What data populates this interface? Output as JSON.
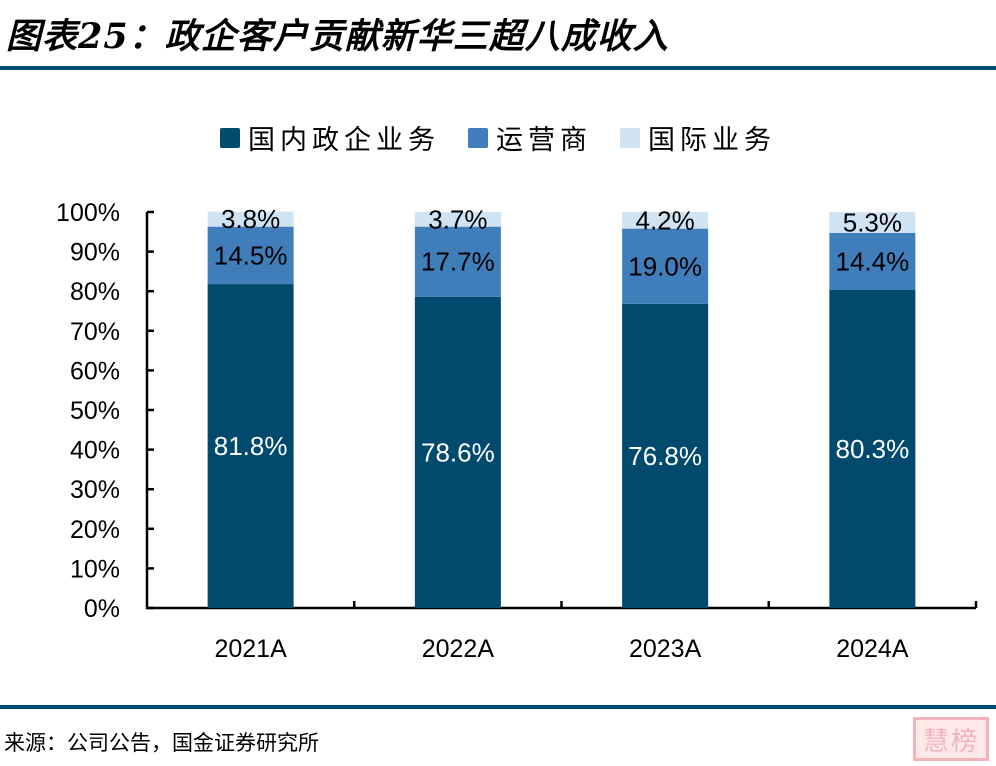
{
  "header": {
    "title": "图表25：政企客户贡献新华三超八成收入"
  },
  "footer": {
    "source": "来源：公司公告，国金证券研究所",
    "stamp": "慧榜"
  },
  "colors": {
    "rule": "#004A6E",
    "domestic": "#004A6E",
    "operator": "#3F7EBA",
    "international": "#D0E3F3"
  },
  "chart_data": {
    "type": "bar",
    "stacked": true,
    "percent_stacked": true,
    "title": "政企客户贡献新华三超八成收入",
    "xlabel": "",
    "ylabel": "",
    "ylim": [
      0,
      100
    ],
    "yticks": [
      "0%",
      "10%",
      "20%",
      "30%",
      "40%",
      "50%",
      "60%",
      "70%",
      "80%",
      "90%",
      "100%"
    ],
    "categories": [
      "2021A",
      "2022A",
      "2023A",
      "2024A"
    ],
    "legend_position": "top",
    "grid": false,
    "series": [
      {
        "name": "国内政企业务",
        "color": "#004A6E",
        "label_color": "#FFFFFF",
        "values": [
          81.8,
          78.6,
          76.8,
          80.3
        ],
        "labels": [
          "81.8%",
          "78.6%",
          "76.8%",
          "80.3%"
        ]
      },
      {
        "name": "运营商",
        "color": "#3F7EBA",
        "label_color": "#000000",
        "values": [
          14.5,
          17.7,
          19.0,
          14.4
        ],
        "labels": [
          "14.5%",
          "17.7%",
          "19.0%",
          "14.4%"
        ]
      },
      {
        "name": "国际业务",
        "color": "#D0E3F3",
        "label_color": "#000000",
        "values": [
          3.8,
          3.7,
          4.2,
          5.3
        ],
        "labels": [
          "3.8%",
          "3.7%",
          "4.2%",
          "5.3%"
        ]
      }
    ]
  }
}
